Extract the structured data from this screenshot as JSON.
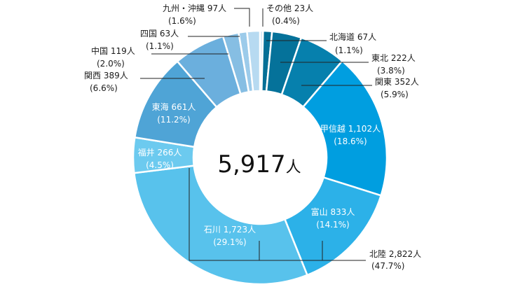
{
  "chart_data": {
    "type": "pie",
    "donut": true,
    "title": "",
    "center_label": {
      "number": "5,917",
      "unit": "人"
    },
    "slices": [
      {
        "name": "その他",
        "value": 23,
        "value_text": "23人",
        "percent_text": "(0.4%)",
        "color": "#d3e7f7"
      },
      {
        "name": "北海道",
        "value": 67,
        "value_text": "67人",
        "percent_text": "(1.1%)",
        "color": "#046f96"
      },
      {
        "name": "東北",
        "value": 222,
        "value_text": "222人",
        "percent_text": "(3.8%)",
        "color": "#05729a"
      },
      {
        "name": "関東",
        "value": 352,
        "value_text": "352人",
        "percent_text": "(5.9%)",
        "color": "#0680ad"
      },
      {
        "name": "甲信越",
        "value": 1102,
        "value_text": "1,102人",
        "percent_text": "(18.6%)",
        "color": "#009ee0"
      },
      {
        "name": "富山",
        "value": 833,
        "value_text": "833人",
        "percent_text": "(14.1%)",
        "color": "#2cb1e8"
      },
      {
        "name": "石川",
        "value": 1723,
        "value_text": "1,723人",
        "percent_text": "(29.1%)",
        "color": "#58c2ec"
      },
      {
        "name": "福井",
        "value": 266,
        "value_text": "266人",
        "percent_text": "(4.5%)",
        "color": "#6ccaef"
      },
      {
        "name": "東海",
        "value": 661,
        "value_text": "661人",
        "percent_text": "(11.2%)",
        "color": "#4fa4d6"
      },
      {
        "name": "関西",
        "value": 389,
        "value_text": "389人",
        "percent_text": "(6.6%)",
        "color": "#6bafdd"
      },
      {
        "name": "中国",
        "value": 119,
        "value_text": "119人",
        "percent_text": "(2.0%)",
        "color": "#86bee3"
      },
      {
        "name": "四国",
        "value": 63,
        "value_text": "63人",
        "percent_text": "(1.1%)",
        "color": "#9ccbea"
      },
      {
        "name": "九州・沖縄",
        "value": 97,
        "value_text": "97人",
        "percent_text": "(1.6%)",
        "color": "#b7daf1"
      }
    ],
    "group_labels": [
      {
        "name": "北陸",
        "value": 2822,
        "value_text": "2,822人",
        "percent_text": "(47.7%)",
        "members": [
          "富山",
          "石川",
          "福井"
        ]
      }
    ]
  }
}
